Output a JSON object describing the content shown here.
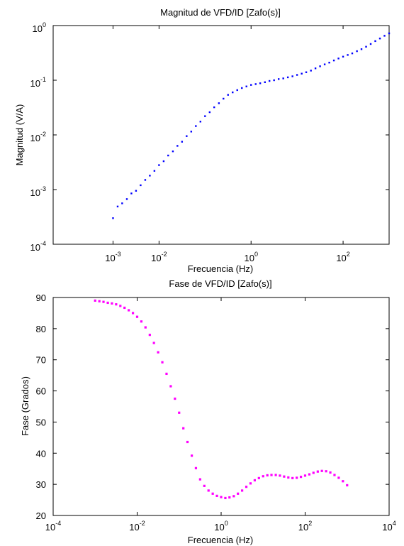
{
  "chart_data": [
    {
      "type": "scatter",
      "title": "Magnitud de VFD/ID  [Zafo(s)]",
      "xlabel": "Frecuencia (Hz)",
      "ylabel": "Magnitud (V/A)",
      "x_scale": "log",
      "y_scale": "log",
      "xlim": [
        5e-05,
        1000
      ],
      "ylim": [
        0.0001,
        1
      ],
      "x_ticks": [
        {
          "base": "10",
          "exp": "-3",
          "value": 0.001
        },
        {
          "base": "10",
          "exp": "-2",
          "value": 0.01
        },
        {
          "base": "10",
          "exp": "0",
          "value": 1
        },
        {
          "base": "10",
          "exp": "2",
          "value": 100
        }
      ],
      "y_ticks": [
        {
          "base": "10",
          "exp": "-4",
          "value": 0.0001
        },
        {
          "base": "10",
          "exp": "-3",
          "value": 0.001
        },
        {
          "base": "10",
          "exp": "-2",
          "value": 0.01
        },
        {
          "base": "10",
          "exp": "-1",
          "value": 0.1
        },
        {
          "base": "10",
          "exp": "0",
          "value": 1
        }
      ],
      "marker_color": "#0000ff",
      "series": [
        {
          "x": [
            0.001,
            0.00126,
            0.00158,
            0.002,
            0.00251,
            0.00316,
            0.00398,
            0.00501,
            0.00631,
            0.00794,
            0.01,
            0.0126,
            0.0158,
            0.02,
            0.0251,
            0.0316,
            0.0398,
            0.0501,
            0.0631,
            0.0794,
            0.1,
            0.126,
            0.158,
            0.2,
            0.251,
            0.316,
            0.398,
            0.501,
            0.631,
            0.794,
            1,
            1.26,
            1.58,
            2,
            2.51,
            3.16,
            3.98,
            5.01,
            6.31,
            7.94,
            10,
            12.6,
            15.8,
            20,
            25.1,
            31.6,
            39.8,
            50.1,
            63.1,
            79.4,
            100,
            126,
            158,
            200,
            251,
            316,
            398,
            501,
            631,
            794,
            1000
          ],
          "y": [
            0.0003,
            0.00049,
            0.00056,
            0.00067,
            0.00085,
            0.00095,
            0.0012,
            0.0015,
            0.0018,
            0.0022,
            0.0028,
            0.0033,
            0.0042,
            0.005,
            0.0063,
            0.0075,
            0.0095,
            0.0115,
            0.0145,
            0.0175,
            0.022,
            0.026,
            0.032,
            0.038,
            0.046,
            0.054,
            0.06,
            0.066,
            0.072,
            0.077,
            0.082,
            0.085,
            0.088,
            0.092,
            0.097,
            0.1,
            0.105,
            0.108,
            0.113,
            0.118,
            0.125,
            0.132,
            0.14,
            0.15,
            0.165,
            0.18,
            0.195,
            0.21,
            0.23,
            0.25,
            0.27,
            0.29,
            0.31,
            0.34,
            0.37,
            0.41,
            0.46,
            0.52,
            0.58,
            0.65,
            0.72
          ]
        }
      ]
    },
    {
      "type": "scatter",
      "title": "Fase de VFD/ID  [Zafo(s)]",
      "xlabel": "Frecuencia (Hz)",
      "ylabel": "Fase (Grados)",
      "x_scale": "log",
      "y_scale": "linear",
      "xlim": [
        0.0001,
        10000
      ],
      "ylim": [
        20,
        90
      ],
      "x_ticks": [
        {
          "base": "10",
          "exp": "-4",
          "value": 0.0001
        },
        {
          "base": "10",
          "exp": "-2",
          "value": 0.01
        },
        {
          "base": "10",
          "exp": "0",
          "value": 1
        },
        {
          "base": "10",
          "exp": "2",
          "value": 100
        },
        {
          "base": "10",
          "exp": "4",
          "value": 10000
        }
      ],
      "y_ticks": [
        "20",
        "30",
        "40",
        "50",
        "60",
        "70",
        "80",
        "90"
      ],
      "marker_color": "#ff00ff",
      "series": [
        {
          "x": [
            0.001,
            0.00126,
            0.00158,
            0.002,
            0.00251,
            0.00316,
            0.00398,
            0.00501,
            0.00631,
            0.00794,
            0.01,
            0.0126,
            0.0158,
            0.02,
            0.0251,
            0.0316,
            0.0398,
            0.0501,
            0.0631,
            0.0794,
            0.1,
            0.126,
            0.158,
            0.2,
            0.251,
            0.316,
            0.398,
            0.501,
            0.631,
            0.794,
            1,
            1.26,
            1.58,
            2,
            2.51,
            3.16,
            3.98,
            5.01,
            6.31,
            7.94,
            10,
            12.6,
            15.8,
            20,
            25.1,
            31.6,
            39.8,
            50.1,
            63.1,
            79.4,
            100,
            126,
            158,
            200,
            251,
            316,
            398,
            501,
            631,
            794,
            1000
          ],
          "y": [
            89,
            88.8,
            88.6,
            88.3,
            88.1,
            87.8,
            87.3,
            86.7,
            85.9,
            85,
            83.8,
            82.3,
            80.4,
            78,
            75.4,
            72.4,
            69.2,
            65.5,
            61.5,
            57.5,
            53,
            48,
            43.6,
            39.2,
            35.2,
            31.6,
            29.5,
            28,
            27,
            26.3,
            25.9,
            25.6,
            25.8,
            26.2,
            27,
            28,
            29.2,
            30.3,
            31.3,
            32,
            32.6,
            32.9,
            33,
            33,
            32.8,
            32.5,
            32.2,
            32,
            32.1,
            32.4,
            32.8,
            33.2,
            33.7,
            34.1,
            34.3,
            34.2,
            33.8,
            33,
            32.1,
            31,
            29.7
          ]
        }
      ]
    }
  ]
}
